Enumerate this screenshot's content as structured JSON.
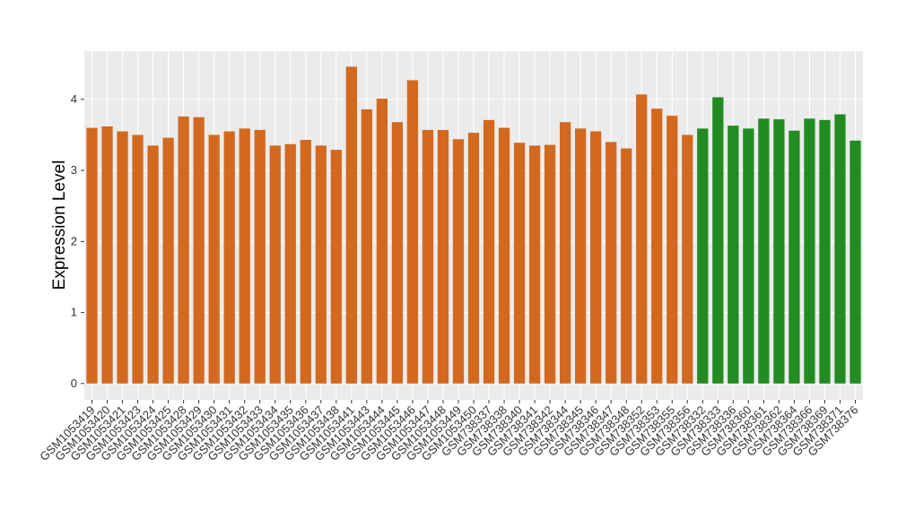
{
  "chart_data": {
    "type": "bar",
    "y_label": "Expression Level",
    "categories": [
      "GSM1053419",
      "GSM1053420",
      "GSM1053421",
      "GSM1053423",
      "GSM1053424",
      "GSM1053425",
      "GSM1053428",
      "GSM1053429",
      "GSM1053430",
      "GSM1053431",
      "GSM1053432",
      "GSM1053433",
      "GSM1053434",
      "GSM1053435",
      "GSM1053436",
      "GSM1053437",
      "GSM1053438",
      "GSM1053441",
      "GSM1053443",
      "GSM1053444",
      "GSM1053445",
      "GSM1053446",
      "GSM1053447",
      "GSM1053448",
      "GSM1053449",
      "GSM1053450",
      "GSM738337",
      "GSM738338",
      "GSM738340",
      "GSM738341",
      "GSM738342",
      "GSM738344",
      "GSM738345",
      "GSM738346",
      "GSM738347",
      "GSM738348",
      "GSM738352",
      "GSM738353",
      "GSM738355",
      "GSM738356",
      "GSM738332",
      "GSM738333",
      "GSM738336",
      "GSM738360",
      "GSM738361",
      "GSM738362",
      "GSM738364",
      "GSM738366",
      "GSM738369",
      "GSM738371",
      "GSM738376"
    ],
    "values": [
      3.6,
      3.62,
      3.55,
      3.5,
      3.35,
      3.46,
      3.76,
      3.75,
      3.5,
      3.55,
      3.59,
      3.57,
      3.35,
      3.37,
      3.43,
      3.35,
      3.29,
      4.46,
      3.86,
      4.01,
      3.68,
      4.27,
      3.57,
      3.57,
      3.44,
      3.53,
      3.71,
      3.6,
      3.39,
      3.35,
      3.36,
      3.68,
      3.59,
      3.55,
      3.4,
      3.31,
      4.07,
      3.87,
      3.77,
      3.5,
      3.59,
      4.03,
      3.63,
      3.59,
      3.73,
      3.72,
      3.56,
      3.73,
      3.71,
      3.79,
      3.42
    ],
    "colors": [
      "#d2691e",
      "#d2691e",
      "#d2691e",
      "#d2691e",
      "#d2691e",
      "#d2691e",
      "#d2691e",
      "#d2691e",
      "#d2691e",
      "#d2691e",
      "#d2691e",
      "#d2691e",
      "#d2691e",
      "#d2691e",
      "#d2691e",
      "#d2691e",
      "#d2691e",
      "#d2691e",
      "#d2691e",
      "#d2691e",
      "#d2691e",
      "#d2691e",
      "#d2691e",
      "#d2691e",
      "#d2691e",
      "#d2691e",
      "#d2691e",
      "#d2691e",
      "#d2691e",
      "#d2691e",
      "#d2691e",
      "#d2691e",
      "#d2691e",
      "#d2691e",
      "#d2691e",
      "#d2691e",
      "#d2691e",
      "#d2691e",
      "#d2691e",
      "#d2691e",
      "#228b22",
      "#228b22",
      "#228b22",
      "#228b22",
      "#228b22",
      "#228b22",
      "#228b22",
      "#228b22",
      "#228b22",
      "#228b22",
      "#228b22"
    ],
    "ylim": [
      -0.23,
      4.68
    ],
    "yticks": [
      0,
      1,
      2,
      3,
      4
    ],
    "grid": true
  }
}
